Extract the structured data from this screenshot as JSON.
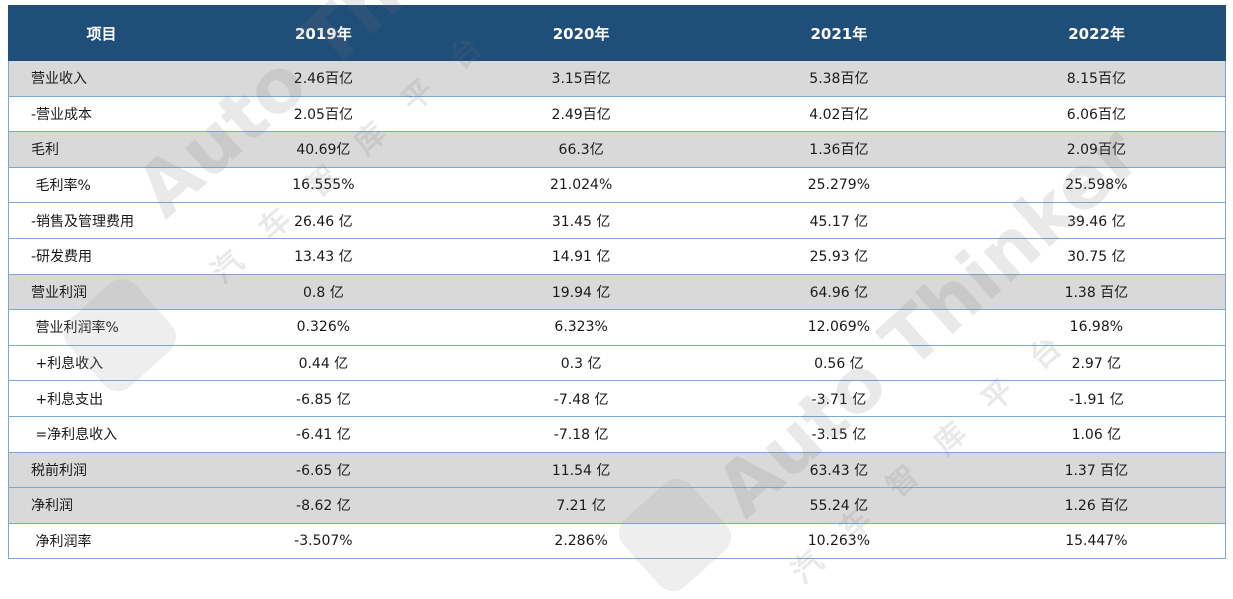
{
  "table": {
    "headers": [
      "项目",
      "2019年",
      "2020年",
      "2021年",
      "2022年"
    ],
    "rows": [
      {
        "label": "营业收入",
        "values": [
          "2.46百亿",
          "3.15百亿",
          "5.38百亿",
          "8.15百亿"
        ],
        "shaded": true
      },
      {
        "label": "-营业成本",
        "values": [
          "2.05百亿",
          "2.49百亿",
          "4.02百亿",
          "6.06百亿"
        ],
        "shaded": false
      },
      {
        "label": "毛利",
        "values": [
          "40.69亿",
          "66.3亿",
          "1.36百亿",
          "2.09百亿"
        ],
        "shaded": true
      },
      {
        "label": " 毛利率%",
        "values": [
          "16.555%",
          "21.024%",
          "25.279%",
          "25.598%"
        ],
        "shaded": false
      },
      {
        "label": "-销售及管理费用",
        "values": [
          "26.46 亿",
          "31.45 亿",
          "45.17 亿",
          "39.46 亿"
        ],
        "shaded": false
      },
      {
        "label": "-研发费用",
        "values": [
          "13.43 亿",
          "14.91 亿",
          "25.93 亿",
          "30.75 亿"
        ],
        "shaded": false
      },
      {
        "label": "营业利润",
        "values": [
          "0.8 亿",
          "19.94 亿",
          "64.96 亿",
          "1.38 百亿"
        ],
        "shaded": true
      },
      {
        "label": " 营业利润率%",
        "values": [
          "0.326%",
          "6.323%",
          "12.069%",
          "16.98%"
        ],
        "shaded": false
      },
      {
        "label": " +利息收入",
        "values": [
          "0.44 亿",
          "0.3 亿",
          "0.56 亿",
          "2.97 亿"
        ],
        "shaded": false
      },
      {
        "label": " +利息支出",
        "values": [
          "-6.85 亿",
          "-7.48 亿",
          "-3.71 亿",
          "-1.91 亿"
        ],
        "shaded": false
      },
      {
        "label": " =净利息收入",
        "values": [
          "-6.41 亿",
          "-7.18 亿",
          "-3.15 亿",
          "1.06 亿"
        ],
        "shaded": false
      },
      {
        "label": "税前利润",
        "values": [
          "-6.65 亿",
          "11.54 亿",
          "63.43 亿",
          "1.37 百亿"
        ],
        "shaded": true
      },
      {
        "label": "净利润",
        "values": [
          "-8.62 亿",
          "7.21 亿",
          "55.24 亿",
          "1.26 百亿"
        ],
        "shaded": true
      },
      {
        "label": " 净利润率",
        "values": [
          "-3.507%",
          "2.286%",
          "10.263%",
          "15.447%"
        ],
        "shaded": false
      }
    ]
  },
  "watermark": {
    "brand": "Auto Thinker",
    "subtitle": "汽车智库平台"
  }
}
